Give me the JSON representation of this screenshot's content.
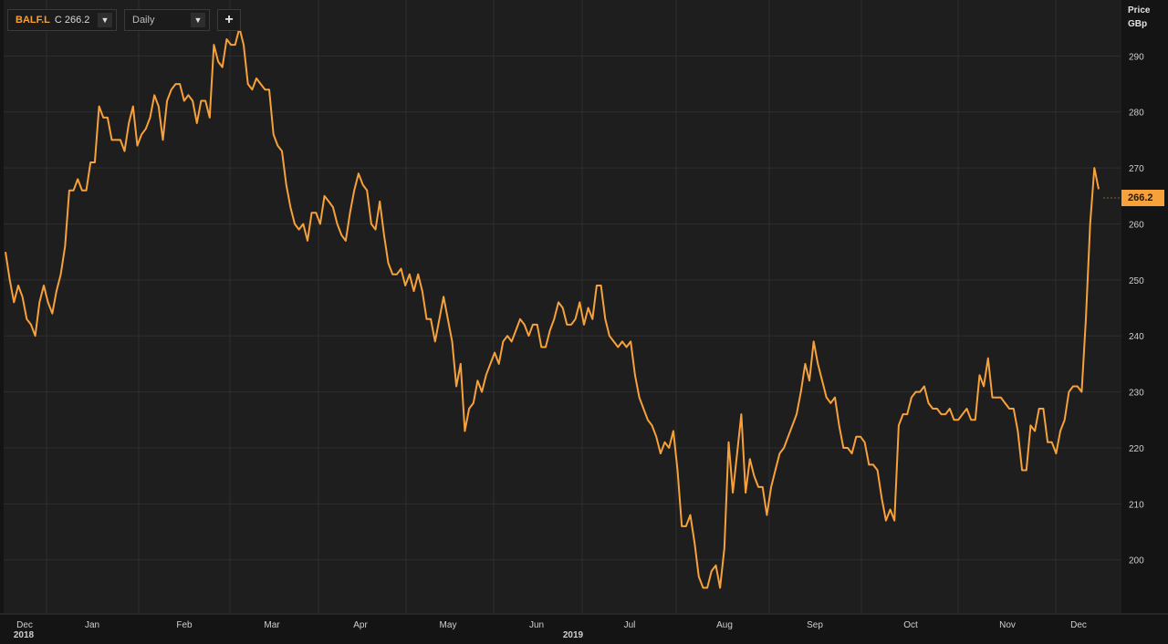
{
  "toolbar": {
    "symbol": "BALF.L",
    "close_label": "C 266.2",
    "interval": "Daily",
    "add_label": "+",
    "dropdown_icon": "caret-down-icon"
  },
  "price_axis": {
    "label": "Price",
    "unit": "GBp"
  },
  "last_price": "266.2",
  "colors": {
    "background": "#141414",
    "plot_background": "#1e1e1e",
    "line": "#f7a13b",
    "grid": "#2e2e2e",
    "text": "#cfcfcf"
  },
  "chart_data": {
    "type": "line",
    "series": [
      {
        "values": [
          255,
          250,
          246,
          249,
          247,
          243,
          242,
          240,
          246,
          249,
          246,
          244,
          248,
          251,
          256,
          266,
          266,
          268,
          266,
          266,
          271,
          271,
          281,
          279,
          279,
          275,
          275,
          275,
          273,
          278,
          281,
          274,
          276,
          277,
          279,
          283,
          281,
          275,
          282,
          284,
          285,
          285,
          282,
          283,
          282,
          278,
          282,
          282,
          279,
          292,
          289,
          288,
          293,
          292,
          292,
          295,
          292,
          285,
          284,
          286,
          285,
          284,
          284,
          276,
          274,
          273,
          267,
          263,
          260,
          259,
          260,
          257,
          262,
          262,
          260,
          265,
          264,
          263,
          260,
          258,
          257,
          262,
          266,
          269,
          267,
          266,
          260,
          259,
          264,
          258,
          253,
          251,
          251,
          252,
          249,
          251,
          248,
          251,
          248,
          243,
          243,
          239,
          243,
          247,
          243,
          239,
          231,
          235,
          223,
          227,
          228,
          232,
          230,
          233,
          235,
          237,
          235,
          239,
          240,
          239,
          241,
          243,
          242,
          240,
          242,
          242,
          238,
          238,
          241,
          243,
          246,
          245,
          242,
          242,
          243,
          246,
          242,
          245,
          243,
          249,
          249,
          243,
          240,
          239,
          238,
          239,
          238,
          239,
          233,
          229,
          227,
          225,
          224,
          222,
          219,
          221,
          220,
          223,
          216,
          206,
          206,
          208,
          203,
          197,
          195,
          195,
          198,
          199,
          195,
          202,
          221,
          212,
          219,
          226,
          212,
          218,
          215,
          213,
          213,
          208,
          213,
          216,
          219,
          220,
          222,
          224,
          226,
          230,
          235,
          232,
          239,
          235,
          232,
          229,
          228,
          229,
          224,
          220,
          220,
          219,
          222,
          222,
          221,
          217,
          217,
          216,
          211,
          207,
          209,
          207,
          224,
          226,
          226,
          229,
          230,
          230,
          231,
          228,
          227,
          227,
          226,
          226,
          227,
          225,
          225,
          226,
          227,
          225,
          225,
          233,
          231,
          236,
          229,
          229,
          229,
          228,
          227,
          227,
          223,
          216,
          216,
          224,
          223,
          227,
          227,
          221,
          221,
          219,
          223,
          225,
          230,
          231,
          231,
          230,
          243,
          260,
          270,
          266.2
        ]
      }
    ],
    "x_ticks": [
      "Dec",
      "Jan",
      "Feb",
      "Mar",
      "Apr",
      "May",
      "Jun",
      "Jul",
      "Aug",
      "Sep",
      "Oct",
      "Nov",
      "Dec"
    ],
    "x_year_labels": [
      "2018",
      "2019"
    ],
    "y_ticks": [
      200,
      210,
      220,
      230,
      240,
      250,
      260,
      270,
      280,
      290
    ],
    "ylim": [
      190.5,
      300
    ],
    "grid": true,
    "y_axis_position": "right"
  }
}
